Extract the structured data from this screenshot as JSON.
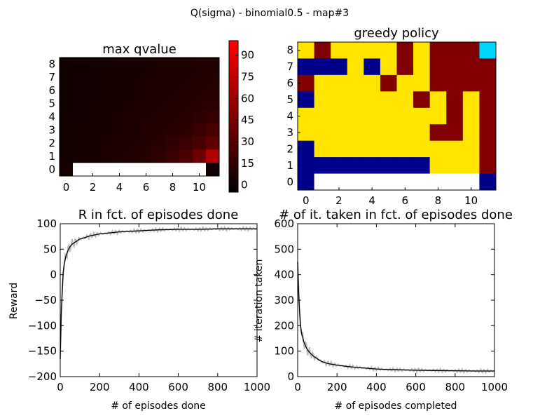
{
  "suptitle": "Q(sigma) - binomial0.5 - map#3",
  "chart_data": [
    {
      "type": "heatmap",
      "title": "max qvalue",
      "x_ticks": [
        "0",
        "2",
        "4",
        "6",
        "8",
        "10"
      ],
      "y_ticks": [
        "0",
        "1",
        "2",
        "3",
        "4",
        "5",
        "6",
        "7",
        "8"
      ],
      "colorbar_ticks": [
        "0",
        "15",
        "30",
        "45",
        "60",
        "75",
        "90"
      ],
      "colorbar_range": [
        -5,
        100
      ],
      "colormap": [
        "#000000",
        "#ff0000"
      ],
      "cols": 12,
      "rows": 9,
      "grid_top_to_bottom": [
        [
          2,
          2,
          3,
          3,
          4,
          4,
          5,
          6,
          6,
          7,
          8,
          8
        ],
        [
          2,
          3,
          3,
          4,
          4,
          5,
          6,
          6,
          7,
          8,
          9,
          10
        ],
        [
          2,
          3,
          3,
          4,
          5,
          5,
          6,
          7,
          8,
          9,
          10,
          11
        ],
        [
          2,
          3,
          4,
          4,
          5,
          6,
          7,
          8,
          9,
          10,
          12,
          13
        ],
        [
          3,
          3,
          4,
          5,
          6,
          7,
          8,
          9,
          10,
          12,
          14,
          17
        ],
        [
          3,
          4,
          4,
          5,
          6,
          7,
          9,
          10,
          12,
          14,
          18,
          24
        ],
        [
          3,
          4,
          5,
          6,
          7,
          8,
          10,
          12,
          15,
          19,
          25,
          35
        ],
        [
          3,
          4,
          5,
          6,
          7,
          9,
          11,
          14,
          19,
          26,
          40,
          68
        ],
        [
          4,
          null,
          null,
          null,
          null,
          null,
          null,
          null,
          null,
          null,
          null,
          2
        ]
      ]
    },
    {
      "type": "heatmap",
      "title": "greedy policy",
      "x_ticks": [
        "0",
        "2",
        "4",
        "6",
        "8",
        "10"
      ],
      "y_ticks": [
        "0",
        "1",
        "2",
        "3",
        "4",
        "5",
        "6",
        "7",
        "8"
      ],
      "palette": {
        "0": "#00008b",
        "1": "#00d5ff",
        "2": "#ffe500",
        "3": "#800000"
      },
      "cols": 12,
      "rows": 9,
      "grid_top_to_bottom": [
        [
          2,
          3,
          2,
          2,
          2,
          2,
          3,
          2,
          3,
          3,
          3,
          1
        ],
        [
          0,
          0,
          0,
          2,
          0,
          2,
          3,
          2,
          3,
          3,
          3,
          3
        ],
        [
          3,
          2,
          2,
          2,
          2,
          3,
          2,
          2,
          3,
          3,
          3,
          3
        ],
        [
          0,
          2,
          2,
          2,
          2,
          2,
          2,
          3,
          2,
          3,
          2,
          3
        ],
        [
          2,
          2,
          2,
          2,
          2,
          2,
          2,
          2,
          2,
          3,
          2,
          3
        ],
        [
          2,
          2,
          2,
          2,
          2,
          2,
          2,
          2,
          3,
          3,
          2,
          3
        ],
        [
          0,
          2,
          2,
          2,
          2,
          2,
          2,
          2,
          2,
          2,
          2,
          3
        ],
        [
          0,
          0,
          0,
          0,
          0,
          0,
          0,
          0,
          2,
          2,
          2,
          3
        ],
        [
          0,
          null,
          null,
          null,
          null,
          null,
          null,
          null,
          null,
          null,
          null,
          0
        ]
      ]
    },
    {
      "type": "line",
      "title": "R in fct. of episodes done",
      "xlabel": "# of episodes done",
      "ylabel": "Reward",
      "xlim": [
        0,
        1000
      ],
      "ylim": [
        -200,
        100
      ],
      "x_ticks": [
        "0",
        "200",
        "400",
        "600",
        "800",
        "1000"
      ],
      "y_ticks": [
        "−200",
        "−150",
        "−100",
        "−50",
        "0",
        "50",
        "100"
      ],
      "x": [
        0,
        5,
        10,
        15,
        20,
        30,
        40,
        50,
        60,
        80,
        100,
        120,
        150,
        200,
        250,
        300,
        350,
        400,
        450,
        500,
        600,
        700,
        800,
        900,
        1000
      ],
      "series": [
        {
          "values": [
            -165,
            -80,
            -35,
            5,
            20,
            38,
            48,
            55,
            60,
            65,
            70,
            72,
            76,
            80,
            82,
            84,
            85,
            86,
            87,
            88,
            89,
            89,
            90,
            90,
            90
          ]
        }
      ]
    },
    {
      "type": "line",
      "title": "# of it. taken in fct. of episodes done",
      "xlabel": "# of episodes completed",
      "ylabel": "# iteration taken",
      "xlim": [
        0,
        1000
      ],
      "ylim": [
        0,
        600
      ],
      "x_ticks": [
        "0",
        "200",
        "400",
        "600",
        "800",
        "1000"
      ],
      "y_ticks": [
        "0",
        "100",
        "200",
        "300",
        "400",
        "500",
        "600"
      ],
      "x": [
        0,
        5,
        10,
        15,
        20,
        30,
        40,
        50,
        60,
        80,
        100,
        120,
        150,
        200,
        250,
        300,
        350,
        400,
        450,
        500,
        600,
        700,
        800,
        900,
        1000
      ],
      "series": [
        {
          "values": [
            450,
            330,
            250,
            200,
            170,
            140,
            120,
            105,
            95,
            80,
            70,
            60,
            52,
            45,
            40,
            36,
            33,
            30,
            28,
            27,
            25,
            24,
            23,
            22,
            22
          ]
        }
      ]
    }
  ]
}
